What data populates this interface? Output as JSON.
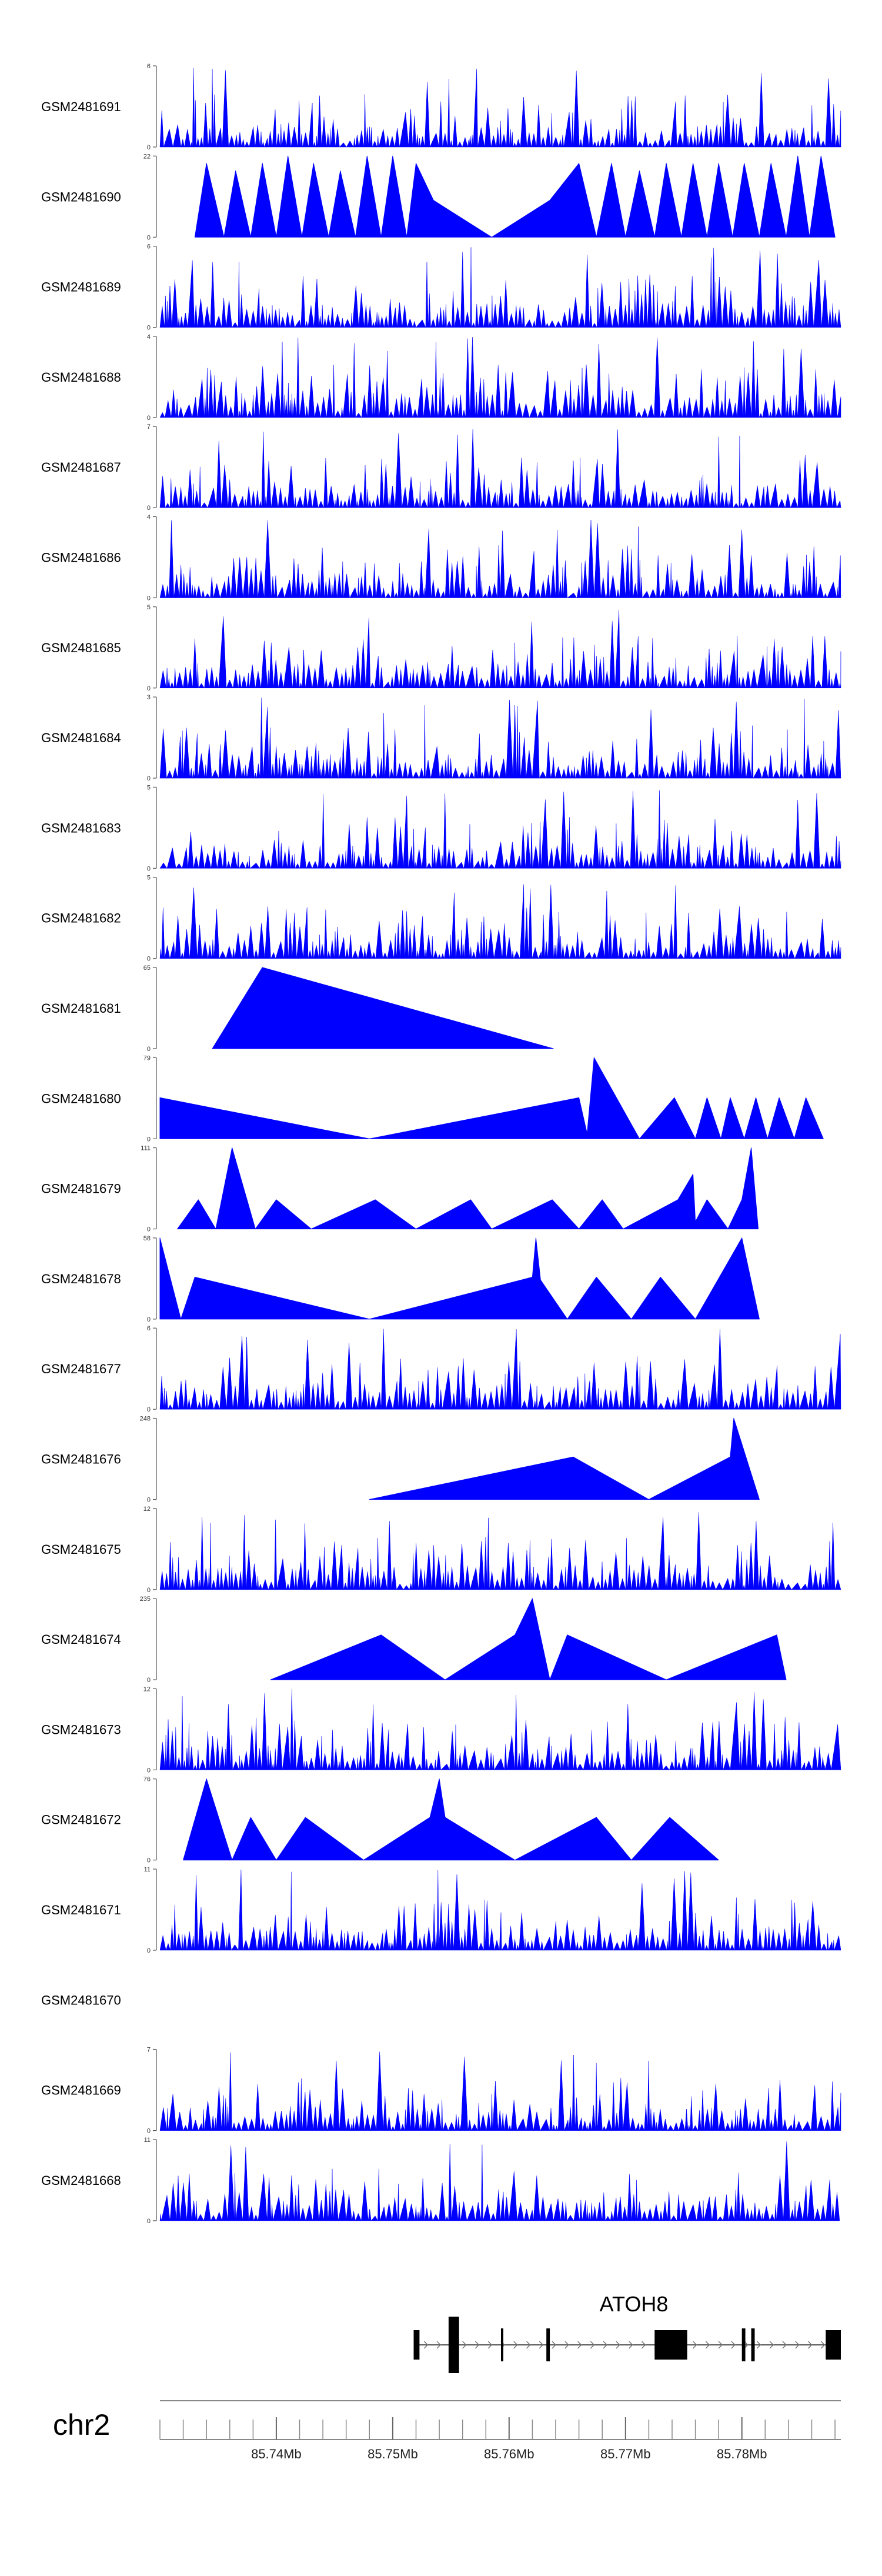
{
  "chart_data": {
    "type": "area",
    "title": "",
    "chromosome": "chr2",
    "xlim": [
      85.73,
      85.7885
    ],
    "x_ticks": [
      {
        "value": 85.74,
        "label": "85.74Mb"
      },
      {
        "value": 85.75,
        "label": "85.75Mb"
      },
      {
        "value": 85.76,
        "label": "85.76Mb"
      },
      {
        "value": 85.77,
        "label": "85.77Mb"
      },
      {
        "value": 85.78,
        "label": "85.78Mb"
      }
    ],
    "gene": {
      "name": "ATOH8",
      "start": 85.7518,
      "end": 85.7885,
      "strand": "+",
      "exons": [
        [
          85.7518,
          85.7523
        ],
        [
          85.7548,
          85.7557
        ],
        [
          85.7593,
          85.7595
        ],
        [
          85.7632,
          85.7635
        ],
        [
          85.7725,
          85.7753
        ],
        [
          85.78,
          85.7803
        ],
        [
          85.7808,
          85.7811
        ],
        [
          85.7872,
          85.7885
        ]
      ]
    },
    "tracks": [
      {
        "name": "GSM2481691",
        "ymax": "6",
        "pattern": "dense"
      },
      {
        "name": "GSM2481690",
        "ymax": "22",
        "pattern": "sparse",
        "peaks": [
          [
            85.733,
            0
          ],
          [
            85.734,
            20
          ],
          [
            85.7355,
            0
          ],
          [
            85.7365,
            18
          ],
          [
            85.7378,
            0
          ],
          [
            85.7388,
            20
          ],
          [
            85.74,
            0
          ],
          [
            85.741,
            22
          ],
          [
            85.7422,
            0
          ],
          [
            85.7432,
            20
          ],
          [
            85.7445,
            0
          ],
          [
            85.7455,
            18
          ],
          [
            85.7468,
            0
          ],
          [
            85.7478,
            22
          ],
          [
            85.749,
            0
          ],
          [
            85.75,
            22
          ],
          [
            85.7512,
            0
          ],
          [
            85.752,
            20
          ],
          [
            85.7535,
            10
          ],
          [
            85.7585,
            0
          ],
          [
            85.7635,
            10
          ],
          [
            85.766,
            20
          ],
          [
            85.7675,
            0
          ],
          [
            85.7688,
            20
          ],
          [
            85.77,
            0
          ],
          [
            85.7712,
            18
          ],
          [
            85.7725,
            0
          ],
          [
            85.7735,
            20
          ],
          [
            85.7748,
            0
          ],
          [
            85.7758,
            20
          ],
          [
            85.777,
            0
          ],
          [
            85.778,
            20
          ],
          [
            85.7792,
            0
          ],
          [
            85.7802,
            20
          ],
          [
            85.7815,
            0
          ],
          [
            85.7825,
            20
          ],
          [
            85.7838,
            0
          ],
          [
            85.7848,
            22
          ],
          [
            85.7858,
            0
          ],
          [
            85.7868,
            22
          ],
          [
            85.788,
            0
          ]
        ]
      },
      {
        "name": "GSM2481689",
        "ymax": "6",
        "pattern": "dense"
      },
      {
        "name": "GSM2481688",
        "ymax": "4",
        "pattern": "dense"
      },
      {
        "name": "GSM2481687",
        "ymax": "7",
        "pattern": "dense"
      },
      {
        "name": "GSM2481686",
        "ymax": "4",
        "pattern": "dense"
      },
      {
        "name": "GSM2481685",
        "ymax": "5",
        "pattern": "dense"
      },
      {
        "name": "GSM2481684",
        "ymax": "3",
        "pattern": "dense"
      },
      {
        "name": "GSM2481683",
        "ymax": "5",
        "pattern": "dense"
      },
      {
        "name": "GSM2481682",
        "ymax": "5",
        "pattern": "dense"
      },
      {
        "name": "GSM2481681",
        "ymax": "65",
        "pattern": "sparse",
        "peaks": [
          [
            85.7345,
            0
          ],
          [
            85.7388,
            65
          ],
          [
            85.7638,
            0
          ]
        ]
      },
      {
        "name": "GSM2481680",
        "ymax": "79",
        "pattern": "sparse",
        "peaks": [
          [
            85.73,
            0
          ],
          [
            85.73,
            40
          ],
          [
            85.748,
            0
          ],
          [
            85.766,
            40
          ],
          [
            85.7667,
            5
          ],
          [
            85.7673,
            79
          ],
          [
            85.7712,
            0
          ],
          [
            85.7742,
            40
          ],
          [
            85.776,
            0
          ],
          [
            85.777,
            40
          ],
          [
            85.7782,
            0
          ],
          [
            85.779,
            40
          ],
          [
            85.7802,
            0
          ],
          [
            85.7812,
            40
          ],
          [
            85.7822,
            0
          ],
          [
            85.7832,
            40
          ],
          [
            85.7845,
            0
          ],
          [
            85.7855,
            40
          ],
          [
            85.787,
            0
          ]
        ]
      },
      {
        "name": "GSM2481679",
        "ymax": "111",
        "pattern": "sparse",
        "peaks": [
          [
            85.7315,
            0
          ],
          [
            85.7333,
            40
          ],
          [
            85.7348,
            0
          ],
          [
            85.7362,
            111
          ],
          [
            85.7382,
            0
          ],
          [
            85.74,
            40
          ],
          [
            85.743,
            0
          ],
          [
            85.7485,
            40
          ],
          [
            85.752,
            0
          ],
          [
            85.7567,
            40
          ],
          [
            85.7585,
            0
          ],
          [
            85.7637,
            40
          ],
          [
            85.766,
            0
          ],
          [
            85.768,
            40
          ],
          [
            85.7698,
            0
          ],
          [
            85.7745,
            40
          ],
          [
            85.7758,
            75
          ],
          [
            85.776,
            10
          ],
          [
            85.777,
            40
          ],
          [
            85.7788,
            0
          ],
          [
            85.78,
            40
          ],
          [
            85.7808,
            111
          ],
          [
            85.7814,
            0
          ]
        ]
      },
      {
        "name": "GSM2481678",
        "ymax": "58",
        "pattern": "sparse",
        "peaks": [
          [
            85.73,
            58
          ],
          [
            85.7318,
            0
          ],
          [
            85.733,
            30
          ],
          [
            85.748,
            0
          ],
          [
            85.762,
            30
          ],
          [
            85.7623,
            58
          ],
          [
            85.7627,
            28
          ],
          [
            85.765,
            0
          ],
          [
            85.7675,
            30
          ],
          [
            85.7705,
            0
          ],
          [
            85.773,
            30
          ],
          [
            85.776,
            0
          ],
          [
            85.78,
            58
          ],
          [
            85.7815,
            0
          ]
        ]
      },
      {
        "name": "GSM2481677",
        "ymax": "6",
        "pattern": "dense"
      },
      {
        "name": "GSM2481676",
        "ymax": "248",
        "pattern": "sparse",
        "peaks": [
          [
            85.748,
            0
          ],
          [
            85.7655,
            130
          ],
          [
            85.772,
            0
          ],
          [
            85.779,
            130
          ],
          [
            85.7793,
            248
          ],
          [
            85.7815,
            0
          ]
        ]
      },
      {
        "name": "GSM2481675",
        "ymax": "12",
        "pattern": "dense"
      },
      {
        "name": "GSM2481674",
        "ymax": "235",
        "pattern": "sparse",
        "peaks": [
          [
            85.7395,
            0
          ],
          [
            85.749,
            130
          ],
          [
            85.7545,
            0
          ],
          [
            85.7605,
            130
          ],
          [
            85.762,
            235
          ],
          [
            85.7635,
            0
          ],
          [
            85.765,
            130
          ],
          [
            85.7735,
            0
          ],
          [
            85.783,
            130
          ],
          [
            85.7838,
            0
          ]
        ]
      },
      {
        "name": "GSM2481673",
        "ymax": "12",
        "pattern": "dense"
      },
      {
        "name": "GSM2481672",
        "ymax": "76",
        "pattern": "sparse",
        "peaks": [
          [
            85.732,
            0
          ],
          [
            85.734,
            76
          ],
          [
            85.7362,
            0
          ],
          [
            85.7378,
            40
          ],
          [
            85.74,
            0
          ],
          [
            85.7425,
            40
          ],
          [
            85.7475,
            0
          ],
          [
            85.7532,
            40
          ],
          [
            85.754,
            76
          ],
          [
            85.7545,
            40
          ],
          [
            85.7605,
            0
          ],
          [
            85.7675,
            40
          ],
          [
            85.7705,
            0
          ],
          [
            85.7738,
            40
          ],
          [
            85.778,
            0
          ]
        ]
      },
      {
        "name": "GSM2481671",
        "ymax": "11",
        "pattern": "dense"
      },
      {
        "name": "GSM2481670",
        "ymax": "",
        "pattern": "empty"
      },
      {
        "name": "GSM2481669",
        "ymax": "7",
        "pattern": "dense"
      },
      {
        "name": "GSM2481668",
        "ymax": "11",
        "pattern": "dense"
      }
    ]
  }
}
